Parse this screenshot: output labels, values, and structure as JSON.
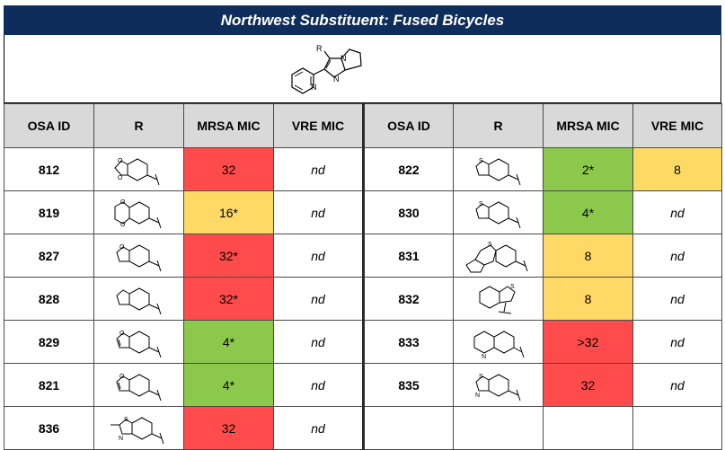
{
  "title": "Northwest Substituent: Fused Bicycles",
  "scaffold": {
    "r_label": "R"
  },
  "headers": [
    "OSA ID",
    "R",
    "MRSA MIC",
    "VRE MIC",
    "OSA ID",
    "R",
    "MRSA MIC",
    "VRE MIC"
  ],
  "colors": {
    "red": "#ff4b4b",
    "yellow": "#ffd966",
    "green": "#8cc84b",
    "title_bg": "#0f2d5a",
    "header_bg": "#d9d9d9"
  },
  "left": [
    {
      "id": "812",
      "r": "benzodioxole-icon",
      "mrsa": "32",
      "mrsa_color": "red",
      "vre": "nd",
      "vre_color": ""
    },
    {
      "id": "819",
      "r": "benzodioxane-icon",
      "mrsa": "16*",
      "mrsa_color": "yellow",
      "vre": "nd",
      "vre_color": ""
    },
    {
      "id": "827",
      "r": "dihydrobenzofuran-icon",
      "mrsa": "32*",
      "mrsa_color": "red",
      "vre": "nd",
      "vre_color": ""
    },
    {
      "id": "828",
      "r": "indane-icon",
      "mrsa": "32*",
      "mrsa_color": "red",
      "vre": "nd",
      "vre_color": ""
    },
    {
      "id": "829",
      "r": "benzofuran-icon",
      "mrsa": "4*",
      "mrsa_color": "green",
      "vre": "nd",
      "vre_color": ""
    },
    {
      "id": "821",
      "r": "benzofuran-icon",
      "mrsa": "4*",
      "mrsa_color": "green",
      "vre": "nd",
      "vre_color": ""
    },
    {
      "id": "836",
      "r": "methylbenzothiazole-icon",
      "mrsa": "32",
      "mrsa_color": "red",
      "vre": "nd",
      "vre_color": ""
    }
  ],
  "right": [
    {
      "id": "822",
      "r": "benzothiophene-icon",
      "mrsa": "2*",
      "mrsa_color": "green",
      "vre": "8",
      "vre_color": "yellow"
    },
    {
      "id": "830",
      "r": "benzothiophene-icon",
      "mrsa": "4*",
      "mrsa_color": "green",
      "vre": "nd",
      "vre_color": ""
    },
    {
      "id": "831",
      "r": "dibenzothiophene-icon",
      "mrsa": "8",
      "mrsa_color": "yellow",
      "vre": "nd",
      "vre_color": ""
    },
    {
      "id": "832",
      "r": "benzothiophene-3-yl-icon",
      "mrsa": "8",
      "mrsa_color": "yellow",
      "vre": "nd",
      "vre_color": ""
    },
    {
      "id": "833",
      "r": "quinoline-icon",
      "mrsa": ">32",
      "mrsa_color": "red",
      "vre": "nd",
      "vre_color": ""
    },
    {
      "id": "835",
      "r": "benzothiazole-icon",
      "mrsa": "32",
      "mrsa_color": "red",
      "vre": "nd",
      "vre_color": ""
    }
  ],
  "atoms": {
    "O": "O",
    "S": "S",
    "N": "N"
  }
}
